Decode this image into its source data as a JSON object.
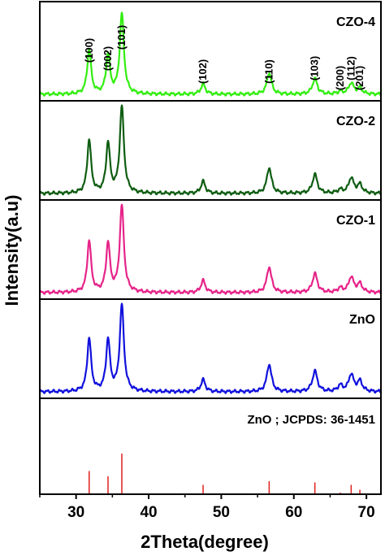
{
  "chart_data": {
    "type": "line",
    "xlabel": "2Theta(degree)",
    "ylabel": "Intensity(a.u)",
    "xlim": [
      25,
      72
    ],
    "xticks": [
      "30",
      "40",
      "50",
      "60",
      "70"
    ],
    "xtick_values": [
      30,
      40,
      50,
      60,
      70
    ],
    "peak_labels": [
      "(100)",
      "(002)",
      "(101)",
      "(102)",
      "(110)",
      "(103)",
      "(200)",
      "(112)",
      "(201)"
    ],
    "peak_positions": [
      31.8,
      34.4,
      36.3,
      47.5,
      56.6,
      62.9,
      66.4,
      67.9,
      69.1
    ],
    "series": [
      {
        "name": "CZO-4",
        "color": "#33ee11",
        "peak_intensities": [
          0.52,
          0.46,
          0.93,
          0.12,
          0.25,
          0.18,
          0.03,
          0.13,
          0.07
        ]
      },
      {
        "name": "CZO-2",
        "color": "#0f5d12",
        "peak_intensities": [
          0.62,
          0.58,
          1.0,
          0.14,
          0.3,
          0.22,
          0.04,
          0.18,
          0.1
        ]
      },
      {
        "name": "CZO-1",
        "color": "#e6248a",
        "peak_intensities": [
          0.6,
          0.57,
          1.0,
          0.14,
          0.3,
          0.22,
          0.05,
          0.18,
          0.1
        ]
      },
      {
        "name": "ZnO",
        "color": "#1111dd",
        "peak_intensities": [
          0.62,
          0.6,
          1.0,
          0.14,
          0.32,
          0.24,
          0.07,
          0.2,
          0.12
        ]
      }
    ],
    "reference": {
      "name": "ZnO ; JCPDS: 36-1451",
      "color": "#e02020",
      "positions": [
        31.8,
        34.4,
        36.3,
        47.5,
        56.6,
        62.9,
        66.4,
        67.9,
        69.1
      ],
      "intensities": [
        0.57,
        0.44,
        1.0,
        0.23,
        0.32,
        0.29,
        0.04,
        0.23,
        0.11
      ]
    }
  }
}
